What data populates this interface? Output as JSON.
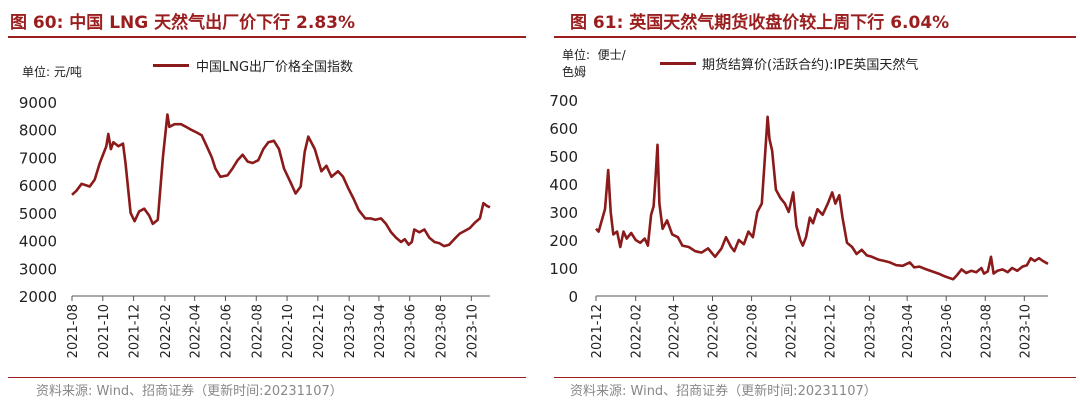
{
  "left": {
    "title": "图 60:  中国 LNG 天然气出厂价下行 2.83%",
    "unit": "单位:  元/吨",
    "source": "资料来源:  Wind、招商证券（更新时间:20231107）",
    "chart_data": {
      "type": "line",
      "title": "图 60:  中国 LNG 天然气出厂价下行 2.83%",
      "ylabel": "单位:  元/吨",
      "ylim": [
        2000,
        9000
      ],
      "yticks": [
        "2000",
        "3000",
        "4000",
        "5000",
        "6000",
        "7000",
        "8000",
        "9000"
      ],
      "xticks": [
        "2021-08",
        "2021-10",
        "2021-12",
        "2022-02",
        "2022-04",
        "2022-06",
        "2022-08",
        "2022-10",
        "2022-12",
        "2023-02",
        "2023-04",
        "2023-06",
        "2023-08",
        "2023-10"
      ],
      "x_range": [
        "2021-08-01",
        "2023-11-07"
      ],
      "line_color": "#8b1a1a",
      "series": [
        {
          "name": "中国LNG出厂价格全国指数",
          "points": [
            [
              "2021-08-01",
              5650
            ],
            [
              "2021-08-10",
              5800
            ],
            [
              "2021-08-20",
              6050
            ],
            [
              "2021-09-05",
              5950
            ],
            [
              "2021-09-15",
              6200
            ],
            [
              "2021-09-25",
              6800
            ],
            [
              "2021-10-08",
              7400
            ],
            [
              "2021-10-12",
              7850
            ],
            [
              "2021-10-17",
              7300
            ],
            [
              "2021-10-22",
              7550
            ],
            [
              "2021-11-01",
              7400
            ],
            [
              "2021-11-10",
              7500
            ],
            [
              "2021-11-15",
              6800
            ],
            [
              "2021-11-25",
              5000
            ],
            [
              "2021-12-03",
              4700
            ],
            [
              "2021-12-12",
              5050
            ],
            [
              "2021-12-22",
              5150
            ],
            [
              "2022-01-01",
              4900
            ],
            [
              "2022-01-08",
              4600
            ],
            [
              "2022-01-18",
              4750
            ],
            [
              "2022-01-28",
              7000
            ],
            [
              "2022-02-06",
              8550
            ],
            [
              "2022-02-10",
              8100
            ],
            [
              "2022-02-20",
              8200
            ],
            [
              "2022-03-05",
              8200
            ],
            [
              "2022-03-15",
              8100
            ],
            [
              "2022-03-25",
              8000
            ],
            [
              "2022-04-05",
              7900
            ],
            [
              "2022-04-15",
              7800
            ],
            [
              "2022-04-25",
              7400
            ],
            [
              "2022-05-05",
              7000
            ],
            [
              "2022-05-12",
              6600
            ],
            [
              "2022-05-22",
              6300
            ],
            [
              "2022-06-05",
              6350
            ],
            [
              "2022-06-15",
              6600
            ],
            [
              "2022-06-25",
              6900
            ],
            [
              "2022-07-05",
              7100
            ],
            [
              "2022-07-15",
              6850
            ],
            [
              "2022-07-25",
              6800
            ],
            [
              "2022-08-05",
              6900
            ],
            [
              "2022-08-15",
              7300
            ],
            [
              "2022-08-25",
              7550
            ],
            [
              "2022-09-05",
              7600
            ],
            [
              "2022-09-15",
              7300
            ],
            [
              "2022-09-25",
              6600
            ],
            [
              "2022-10-08",
              6100
            ],
            [
              "2022-10-18",
              5700
            ],
            [
              "2022-10-28",
              5950
            ],
            [
              "2022-11-05",
              7200
            ],
            [
              "2022-11-12",
              7750
            ],
            [
              "2022-11-25",
              7300
            ],
            [
              "2022-12-08",
              6500
            ],
            [
              "2022-12-18",
              6700
            ],
            [
              "2022-12-28",
              6300
            ],
            [
              "2023-01-10",
              6500
            ],
            [
              "2023-01-20",
              6300
            ],
            [
              "2023-01-30",
              5900
            ],
            [
              "2023-02-10",
              5500
            ],
            [
              "2023-02-20",
              5100
            ],
            [
              "2023-03-05",
              4800
            ],
            [
              "2023-03-15",
              4800
            ],
            [
              "2023-03-25",
              4750
            ],
            [
              "2023-04-05",
              4800
            ],
            [
              "2023-04-15",
              4600
            ],
            [
              "2023-04-25",
              4300
            ],
            [
              "2023-05-05",
              4100
            ],
            [
              "2023-05-15",
              3950
            ],
            [
              "2023-05-22",
              4050
            ],
            [
              "2023-05-30",
              3850
            ],
            [
              "2023-06-05",
              3950
            ],
            [
              "2023-06-10",
              4400
            ],
            [
              "2023-06-20",
              4300
            ],
            [
              "2023-06-30",
              4400
            ],
            [
              "2023-07-10",
              4100
            ],
            [
              "2023-07-20",
              3950
            ],
            [
              "2023-07-30",
              3900
            ],
            [
              "2023-08-08",
              3800
            ],
            [
              "2023-08-18",
              3850
            ],
            [
              "2023-08-28",
              4050
            ],
            [
              "2023-09-08",
              4250
            ],
            [
              "2023-09-18",
              4350
            ],
            [
              "2023-09-28",
              4450
            ],
            [
              "2023-10-08",
              4650
            ],
            [
              "2023-10-18",
              4800
            ],
            [
              "2023-10-25",
              5350
            ],
            [
              "2023-11-01",
              5250
            ],
            [
              "2023-11-07",
              5200
            ]
          ]
        }
      ]
    }
  },
  "right": {
    "title": "图 61:  英国天然气期货收盘价较上周下行 6.04%",
    "unit": "单位:  便士/\n色姆",
    "source": "资料来源:  Wind、招商证券（更新时间:20231107）",
    "chart_data": {
      "type": "line",
      "title": "图 61:  英国天然气期货收盘价较上周下行 6.04%",
      "ylabel": "单位:  便士/色姆",
      "ylim": [
        0,
        700
      ],
      "yticks": [
        "0",
        "100",
        "200",
        "300",
        "400",
        "500",
        "600",
        "700"
      ],
      "xticks": [
        "2021-12",
        "2022-02",
        "2022-04",
        "2022-06",
        "2022-08",
        "2022-10",
        "2022-12",
        "2023-02",
        "2023-04",
        "2023-06",
        "2023-08",
        "2023-10"
      ],
      "x_range": [
        "2021-12-01",
        "2023-11-07"
      ],
      "line_color": "#8b1a1a",
      "series": [
        {
          "name": "期货结算价(活跃合约):IPE英国天然气",
          "points": [
            [
              "2021-12-01",
              240
            ],
            [
              "2021-12-05",
              230
            ],
            [
              "2021-12-10",
              270
            ],
            [
              "2021-12-15",
              310
            ],
            [
              "2021-12-20",
              450
            ],
            [
              "2021-12-24",
              300
            ],
            [
              "2021-12-28",
              220
            ],
            [
              "2022-01-03",
              230
            ],
            [
              "2022-01-08",
              175
            ],
            [
              "2022-01-13",
              230
            ],
            [
              "2022-01-18",
              205
            ],
            [
              "2022-01-25",
              225
            ],
            [
              "2022-02-01",
              200
            ],
            [
              "2022-02-08",
              190
            ],
            [
              "2022-02-15",
              205
            ],
            [
              "2022-02-20",
              180
            ],
            [
              "2022-02-25",
              290
            ],
            [
              "2022-03-01",
              320
            ],
            [
              "2022-03-04",
              420
            ],
            [
              "2022-03-07",
              540
            ],
            [
              "2022-03-10",
              330
            ],
            [
              "2022-03-15",
              240
            ],
            [
              "2022-03-22",
              270
            ],
            [
              "2022-03-30",
              220
            ],
            [
              "2022-04-08",
              210
            ],
            [
              "2022-04-15",
              180
            ],
            [
              "2022-04-25",
              175
            ],
            [
              "2022-05-05",
              160
            ],
            [
              "2022-05-15",
              155
            ],
            [
              "2022-05-25",
              170
            ],
            [
              "2022-06-05",
              140
            ],
            [
              "2022-06-15",
              170
            ],
            [
              "2022-06-22",
              210
            ],
            [
              "2022-06-30",
              175
            ],
            [
              "2022-07-05",
              160
            ],
            [
              "2022-07-12",
              200
            ],
            [
              "2022-07-20",
              185
            ],
            [
              "2022-07-27",
              230
            ],
            [
              "2022-08-03",
              210
            ],
            [
              "2022-08-10",
              300
            ],
            [
              "2022-08-17",
              330
            ],
            [
              "2022-08-22",
              500
            ],
            [
              "2022-08-26",
              640
            ],
            [
              "2022-08-29",
              560
            ],
            [
              "2022-09-02",
              520
            ],
            [
              "2022-09-08",
              380
            ],
            [
              "2022-09-15",
              350
            ],
            [
              "2022-09-22",
              330
            ],
            [
              "2022-09-28",
              300
            ],
            [
              "2022-10-05",
              370
            ],
            [
              "2022-10-10",
              250
            ],
            [
              "2022-10-16",
              200
            ],
            [
              "2022-10-20",
              180
            ],
            [
              "2022-10-25",
              210
            ],
            [
              "2022-10-31",
              280
            ],
            [
              "2022-11-05",
              260
            ],
            [
              "2022-11-12",
              310
            ],
            [
              "2022-11-20",
              290
            ],
            [
              "2022-11-28",
              330
            ],
            [
              "2022-12-05",
              370
            ],
            [
              "2022-12-10",
              330
            ],
            [
              "2022-12-16",
              360
            ],
            [
              "2022-12-21",
              280
            ],
            [
              "2022-12-28",
              190
            ],
            [
              "2023-01-05",
              175
            ],
            [
              "2023-01-12",
              150
            ],
            [
              "2023-01-20",
              165
            ],
            [
              "2023-01-28",
              145
            ],
            [
              "2023-02-05",
              140
            ],
            [
              "2023-02-15",
              130
            ],
            [
              "2023-02-25",
              125
            ],
            [
              "2023-03-05",
              120
            ],
            [
              "2023-03-15",
              110
            ],
            [
              "2023-03-25",
              108
            ],
            [
              "2023-04-05",
              120
            ],
            [
              "2023-04-12",
              102
            ],
            [
              "2023-04-20",
              105
            ],
            [
              "2023-05-01",
              95
            ],
            [
              "2023-05-10",
              88
            ],
            [
              "2023-05-20",
              80
            ],
            [
              "2023-05-30",
              70
            ],
            [
              "2023-06-05",
              65
            ],
            [
              "2023-06-12",
              60
            ],
            [
              "2023-06-18",
              75
            ],
            [
              "2023-06-25",
              95
            ],
            [
              "2023-07-02",
              82
            ],
            [
              "2023-07-10",
              90
            ],
            [
              "2023-07-18",
              85
            ],
            [
              "2023-07-26",
              100
            ],
            [
              "2023-07-30",
              80
            ],
            [
              "2023-08-05",
              88
            ],
            [
              "2023-08-10",
              140
            ],
            [
              "2023-08-14",
              80
            ],
            [
              "2023-08-20",
              90
            ],
            [
              "2023-08-28",
              95
            ],
            [
              "2023-09-05",
              85
            ],
            [
              "2023-09-12",
              100
            ],
            [
              "2023-09-20",
              90
            ],
            [
              "2023-09-28",
              105
            ],
            [
              "2023-10-05",
              110
            ],
            [
              "2023-10-11",
              135
            ],
            [
              "2023-10-17",
              125
            ],
            [
              "2023-10-24",
              135
            ],
            [
              "2023-10-30",
              125
            ],
            [
              "2023-11-07",
              115
            ]
          ]
        }
      ]
    }
  }
}
